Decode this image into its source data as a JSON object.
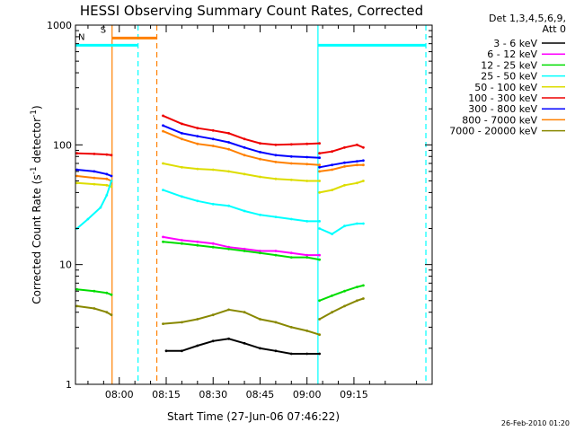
{
  "chart_data": {
    "type": "line",
    "title": "HESSI Observing Summary Count Rates, Corrected",
    "xlabel": "Start Time (27-Jun-06 07:46:22)",
    "ylabel_main": "Corrected Count Rate (s",
    "ylabel_sup1": "-1",
    "ylabel_mid": " detector",
    "ylabel_sup2": "-1",
    "ylabel_end": ")",
    "yscale": "log",
    "ylim": [
      1,
      1000
    ],
    "xlim": [
      466,
      580
    ],
    "x_unit": "minutes after 00:00 UT, 27-Jun-06",
    "x_ticks": [
      {
        "t": 480,
        "label": "08:00"
      },
      {
        "t": 495,
        "label": "08:15"
      },
      {
        "t": 510,
        "label": "08:30"
      },
      {
        "t": 525,
        "label": "08:45"
      },
      {
        "t": 540,
        "label": "09:00"
      },
      {
        "t": 555,
        "label": "09:15"
      }
    ],
    "y_ticks": [
      {
        "v": 1,
        "label": "1"
      },
      {
        "v": 10,
        "label": "10"
      },
      {
        "v": 100,
        "label": "100"
      },
      {
        "v": 1000,
        "label": "1000"
      }
    ],
    "legend_header": [
      "Det 1,3,4,5,6,9,",
      "Att 0"
    ],
    "legend": [
      {
        "name": "3 - 6 keV",
        "color": "#000000"
      },
      {
        "name": "6 - 12 keV",
        "color": "#ff00ff"
      },
      {
        "name": "12 - 25 keV",
        "color": "#00dd00"
      },
      {
        "name": "25 - 50 keV",
        "color": "#00ffff"
      },
      {
        "name": "50 - 100 keV",
        "color": "#dddd00"
      },
      {
        "name": "100 - 300 keV",
        "color": "#ee0000"
      },
      {
        "name": "300 - 800 keV",
        "color": "#0000ff"
      },
      {
        "name": "800 - 7000 keV",
        "color": "#ff8000"
      },
      {
        "name": "7000 - 20000 keV",
        "color": "#888800"
      }
    ],
    "series": [
      {
        "name": "100 - 300 keV",
        "color": "#ee0000",
        "segments": [
          [
            [
              466.5,
              85
            ],
            [
              472,
              84
            ],
            [
              476,
              83
            ],
            [
              477.5,
              82
            ]
          ],
          [
            [
              494,
              175
            ],
            [
              500,
              150
            ],
            [
              505,
              138
            ],
            [
              510,
              132
            ],
            [
              515,
              125
            ],
            [
              520,
              112
            ],
            [
              525,
              103
            ],
            [
              530,
              100
            ],
            [
              535,
              101
            ],
            [
              540,
              102
            ],
            [
              544,
              103
            ]
          ],
          [
            [
              544,
              85
            ],
            [
              548,
              88
            ],
            [
              552,
              95
            ],
            [
              556,
              100
            ],
            [
              558,
              95
            ]
          ]
        ]
      },
      {
        "name": "300 - 800 keV",
        "color": "#0000ff",
        "segments": [
          [
            [
              466.5,
              62
            ],
            [
              472,
              60
            ],
            [
              476,
              57
            ],
            [
              477.5,
              55
            ]
          ],
          [
            [
              494,
              145
            ],
            [
              500,
              125
            ],
            [
              505,
              118
            ],
            [
              510,
              112
            ],
            [
              515,
              105
            ],
            [
              520,
              95
            ],
            [
              525,
              87
            ],
            [
              530,
              82
            ],
            [
              535,
              80
            ],
            [
              540,
              79
            ],
            [
              544,
              78
            ]
          ],
          [
            [
              544,
              65
            ],
            [
              548,
              68
            ],
            [
              552,
              71
            ],
            [
              556,
              73
            ],
            [
              558,
              74
            ]
          ]
        ]
      },
      {
        "name": "800 - 7000 keV",
        "color": "#ff8000",
        "segments": [
          [
            [
              466.5,
              55
            ],
            [
              472,
              53
            ],
            [
              476,
              52
            ],
            [
              477.5,
              50
            ]
          ],
          [
            [
              494,
              130
            ],
            [
              500,
              112
            ],
            [
              505,
              102
            ],
            [
              510,
              98
            ],
            [
              515,
              92
            ],
            [
              520,
              82
            ],
            [
              525,
              76
            ],
            [
              530,
              72
            ],
            [
              535,
              70
            ],
            [
              540,
              69
            ],
            [
              544,
              68
            ]
          ],
          [
            [
              544,
              60
            ],
            [
              548,
              62
            ],
            [
              552,
              66
            ],
            [
              556,
              68
            ],
            [
              558,
              68
            ]
          ]
        ]
      },
      {
        "name": "50 - 100 keV",
        "color": "#dddd00",
        "segments": [
          [
            [
              466.5,
              48
            ],
            [
              472,
              47
            ],
            [
              476,
              46
            ],
            [
              477.5,
              45
            ]
          ],
          [
            [
              494,
              70
            ],
            [
              500,
              65
            ],
            [
              505,
              63
            ],
            [
              510,
              62
            ],
            [
              515,
              60
            ],
            [
              520,
              57
            ],
            [
              525,
              54
            ],
            [
              530,
              52
            ],
            [
              535,
              51
            ],
            [
              540,
              50
            ],
            [
              544,
              50
            ]
          ],
          [
            [
              544,
              40
            ],
            [
              548,
              42
            ],
            [
              552,
              46
            ],
            [
              556,
              48
            ],
            [
              558,
              50
            ]
          ]
        ]
      },
      {
        "name": "25 - 50 keV",
        "color": "#00ffff",
        "segments": [
          [
            [
              466.5,
              20
            ],
            [
              470,
              24
            ],
            [
              474,
              30
            ],
            [
              476,
              38
            ],
            [
              477.5,
              50
            ]
          ],
          [
            [
              494,
              42
            ],
            [
              500,
              37
            ],
            [
              505,
              34
            ],
            [
              510,
              32
            ],
            [
              515,
              31
            ],
            [
              520,
              28
            ],
            [
              525,
              26
            ],
            [
              530,
              25
            ],
            [
              535,
              24
            ],
            [
              540,
              23
            ],
            [
              544,
              23
            ]
          ],
          [
            [
              544,
              20
            ],
            [
              548,
              18
            ],
            [
              552,
              21
            ],
            [
              556,
              22
            ],
            [
              558,
              22
            ]
          ]
        ]
      },
      {
        "name": "6 - 12 keV",
        "color": "#ff00ff",
        "segments": [
          [
            [
              494,
              17
            ],
            [
              500,
              16
            ],
            [
              505,
              15.5
            ],
            [
              510,
              15
            ],
            [
              515,
              14
            ],
            [
              520,
              13.5
            ],
            [
              525,
              13
            ],
            [
              530,
              13
            ],
            [
              535,
              12.5
            ],
            [
              540,
              12
            ],
            [
              544,
              12
            ]
          ]
        ]
      },
      {
        "name": "12 - 25 keV",
        "color": "#00dd00",
        "segments": [
          [
            [
              466.5,
              6.2
            ],
            [
              472,
              6.0
            ],
            [
              476,
              5.8
            ],
            [
              477.5,
              5.6
            ]
          ],
          [
            [
              494,
              15.5
            ],
            [
              500,
              15
            ],
            [
              505,
              14.5
            ],
            [
              510,
              14
            ],
            [
              515,
              13.5
            ],
            [
              520,
              13
            ],
            [
              525,
              12.5
            ],
            [
              530,
              12
            ],
            [
              535,
              11.5
            ],
            [
              540,
              11.5
            ],
            [
              544,
              11
            ]
          ],
          [
            [
              544,
              5
            ],
            [
              548,
              5.5
            ],
            [
              552,
              6
            ],
            [
              556,
              6.5
            ],
            [
              558,
              6.7
            ]
          ]
        ]
      },
      {
        "name": "7000 - 20000 keV",
        "color": "#888800",
        "segments": [
          [
            [
              466.5,
              4.5
            ],
            [
              472,
              4.3
            ],
            [
              476,
              4.0
            ],
            [
              477.5,
              3.8
            ]
          ],
          [
            [
              494,
              3.2
            ],
            [
              500,
              3.3
            ],
            [
              505,
              3.5
            ],
            [
              510,
              3.8
            ],
            [
              515,
              4.2
            ],
            [
              520,
              4.0
            ],
            [
              525,
              3.5
            ],
            [
              530,
              3.3
            ],
            [
              535,
              3.0
            ],
            [
              540,
              2.8
            ],
            [
              544,
              2.6
            ]
          ],
          [
            [
              544,
              3.5
            ],
            [
              548,
              4.0
            ],
            [
              552,
              4.5
            ],
            [
              556,
              5.0
            ],
            [
              558,
              5.2
            ]
          ]
        ]
      },
      {
        "name": "3 - 6 keV",
        "color": "#000000",
        "segments": [
          [
            [
              495,
              1.9
            ],
            [
              500,
              1.9
            ],
            [
              505,
              2.1
            ],
            [
              510,
              2.3
            ],
            [
              515,
              2.4
            ],
            [
              520,
              2.2
            ],
            [
              525,
              2.0
            ],
            [
              530,
              1.9
            ],
            [
              535,
              1.8
            ],
            [
              540,
              1.8
            ],
            [
              544,
              1.8
            ]
          ]
        ]
      }
    ],
    "flags": [
      {
        "label": "S",
        "color": "#ff8000",
        "x_start": 477.7,
        "x_end": 492,
        "y": 780
      },
      {
        "label": "N",
        "color": "#00ffff",
        "x_start": 466,
        "x_end": 486,
        "y": 680
      },
      {
        "label": "",
        "color": "#00ffff",
        "x_start": 543.5,
        "x_end": 578,
        "y": 680
      }
    ],
    "markers": [
      {
        "x": 477.7,
        "color": "#ff8000",
        "style": "solid"
      },
      {
        "x": 486,
        "color": "#00ffff",
        "style": "dashed"
      },
      {
        "x": 492,
        "color": "#ff8000",
        "style": "dashed"
      },
      {
        "x": 543.5,
        "color": "#00ffff",
        "style": "solid"
      },
      {
        "x": 578,
        "color": "#00ffff",
        "style": "dashed"
      }
    ],
    "grid": false,
    "legend_position": "right"
  },
  "footer": {
    "timestamp": "26-Feb-2010 01:20"
  }
}
